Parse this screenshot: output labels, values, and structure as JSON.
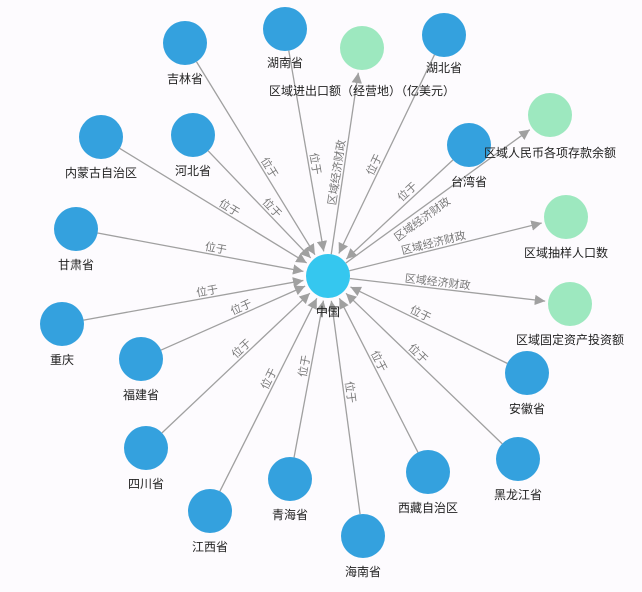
{
  "colors": {
    "province": "#34a1de",
    "center": "#35c7ef",
    "indicator": "#9de8bf",
    "edge": "#a0a0a0"
  },
  "center": {
    "id": "china",
    "label": "中国"
  },
  "nodes": [
    {
      "id": "jilin",
      "label": "吉林省",
      "type": "province",
      "edge_label": "位于"
    },
    {
      "id": "hunan",
      "label": "湖南省",
      "type": "province",
      "edge_label": "位于"
    },
    {
      "id": "import-export",
      "label": "区域进出口额（经营地）（亿美元）",
      "type": "indicator",
      "edge_label": "区域经济财政"
    },
    {
      "id": "hubei",
      "label": "湖北省",
      "type": "province",
      "edge_label": "位于"
    },
    {
      "id": "neimenggu",
      "label": "内蒙古自治区",
      "type": "province",
      "edge_label": "位于"
    },
    {
      "id": "hebei",
      "label": "河北省",
      "type": "province",
      "edge_label": "位于"
    },
    {
      "id": "taiwan",
      "label": "台湾省",
      "type": "province",
      "edge_label": "位于"
    },
    {
      "id": "deposits",
      "label": "区域人民币各项存款余额",
      "type": "indicator",
      "edge_label": "区域经济财政"
    },
    {
      "id": "gansu",
      "label": "甘肃省",
      "type": "province",
      "edge_label": "位于"
    },
    {
      "id": "population",
      "label": "区域抽样人口数",
      "type": "indicator",
      "edge_label": "区域经济财政"
    },
    {
      "id": "chongqing",
      "label": "重庆",
      "type": "province",
      "edge_label": "位于"
    },
    {
      "id": "fujian",
      "label": "福建省",
      "type": "province",
      "edge_label": "位于"
    },
    {
      "id": "investment",
      "label": "区域固定资产投资额",
      "type": "indicator",
      "edge_label": "区域经济财政"
    },
    {
      "id": "anhui",
      "label": "安徽省",
      "type": "province",
      "edge_label": "位于"
    },
    {
      "id": "sichuan",
      "label": "四川省",
      "type": "province",
      "edge_label": "位于"
    },
    {
      "id": "heilongjiang",
      "label": "黑龙江省",
      "type": "province",
      "edge_label": "位于"
    },
    {
      "id": "xizang",
      "label": "西藏自治区",
      "type": "province",
      "edge_label": "位于"
    },
    {
      "id": "qinghai",
      "label": "青海省",
      "type": "province",
      "edge_label": "位于"
    },
    {
      "id": "jiangxi",
      "label": "江西省",
      "type": "province",
      "edge_label": "位于"
    },
    {
      "id": "hainan",
      "label": "海南省",
      "type": "province",
      "edge_label": "位于"
    }
  ]
}
